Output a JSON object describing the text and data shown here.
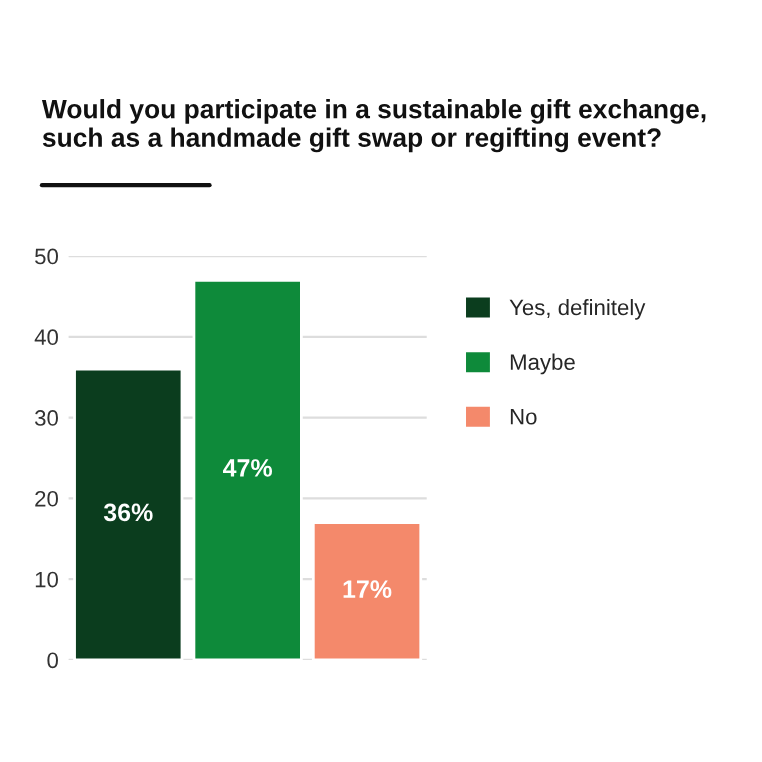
{
  "chart_data": {
    "type": "bar",
    "title": "Would you participate in a sustainable gift exchange,\nsuch as a handmade gift swap or regifting event?",
    "categories": [
      null,
      null,
      null
    ],
    "series": [
      {
        "name": "Yes, definitely",
        "color": "#0b3d1e",
        "values": [
          36,
          null,
          null
        ],
        "value_labels": [
          "36%",
          null,
          null
        ]
      },
      {
        "name": "Maybe",
        "color": "#0e8a3a",
        "values": [
          null,
          47,
          null
        ],
        "value_labels": [
          null,
          "47%",
          null
        ]
      },
      {
        "name": "No",
        "color": "#f4896b",
        "values": [
          null,
          null,
          17
        ],
        "value_labels": [
          null,
          null,
          "17%"
        ]
      }
    ],
    "ylim": [
      0,
      50
    ],
    "yticks": [
      0,
      10,
      20,
      30,
      40,
      50
    ],
    "grid": "y",
    "legend": "right",
    "tick_labels": "y"
  }
}
